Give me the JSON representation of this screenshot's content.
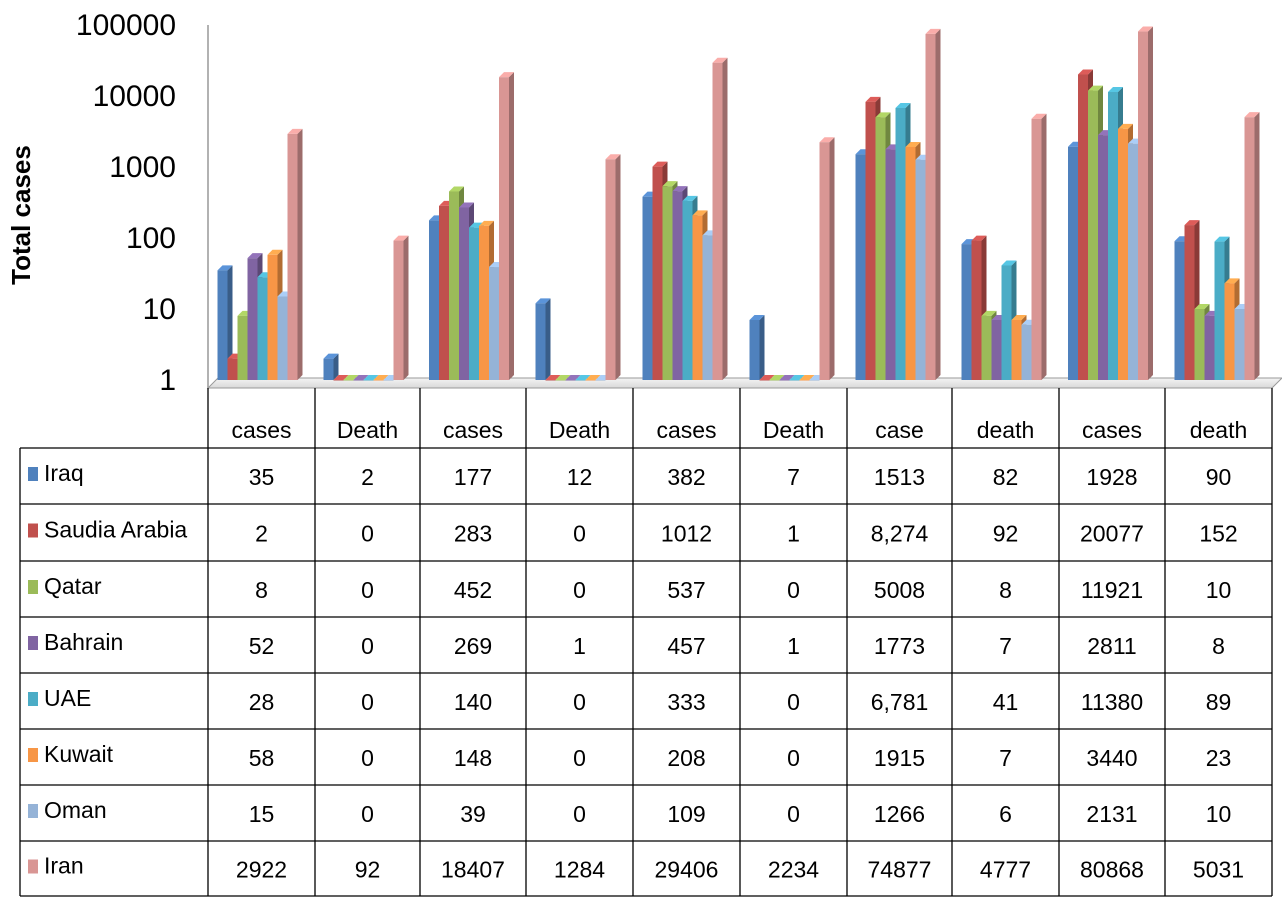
{
  "chart_data": {
    "type": "bar",
    "ylabel": "Total cases",
    "yscale": "log",
    "ylim": [
      1,
      100000
    ],
    "y_ticks": [
      "1",
      "10",
      "100",
      "1000",
      "10000",
      "100000"
    ],
    "categories": [
      "cases",
      "Death",
      "cases",
      "Death",
      "cases",
      "Death",
      "case",
      "death",
      "cases",
      "death"
    ],
    "legend_position": "data-table",
    "series": [
      {
        "name": "Iraq",
        "color": "#4F81BD",
        "values": [
          35,
          2,
          177,
          12,
          382,
          7,
          1513,
          82,
          1928,
          90
        ],
        "labels": [
          "35",
          "2",
          "177",
          "12",
          "382",
          "7",
          "1513",
          "82",
          "1928",
          "90"
        ]
      },
      {
        "name": "Saudia Arabia",
        "color": "#C0504D",
        "values": [
          2,
          0,
          283,
          0,
          1012,
          1,
          8274,
          92,
          20077,
          152
        ],
        "labels": [
          "2",
          "0",
          "283",
          "0",
          "1012",
          "1",
          "8,274",
          "92",
          "20077",
          "152"
        ]
      },
      {
        "name": "Qatar",
        "color": "#9BBB59",
        "values": [
          8,
          0,
          452,
          0,
          537,
          0,
          5008,
          8,
          11921,
          10
        ],
        "labels": [
          "8",
          "0",
          "452",
          "0",
          "537",
          "0",
          "5008",
          "8",
          "11921",
          "10"
        ]
      },
      {
        "name": "Bahrain",
        "color": "#8064A2",
        "values": [
          52,
          0,
          269,
          1,
          457,
          1,
          1773,
          7,
          2811,
          8
        ],
        "labels": [
          "52",
          "0",
          "269",
          "1",
          "457",
          "1",
          "1773",
          "7",
          "2811",
          "8"
        ]
      },
      {
        "name": "UAE",
        "color": "#4BACC6",
        "values": [
          28,
          0,
          140,
          0,
          333,
          0,
          6781,
          41,
          11380,
          89
        ],
        "labels": [
          "28",
          "0",
          "140",
          "0",
          "333",
          "0",
          "6,781",
          "41",
          "11380",
          "89"
        ]
      },
      {
        "name": "Kuwait",
        "color": "#F79646",
        "values": [
          58,
          0,
          148,
          0,
          208,
          0,
          1915,
          7,
          3440,
          23
        ],
        "labels": [
          "58",
          "0",
          "148",
          "0",
          "208",
          "0",
          "1915",
          "7",
          "3440",
          "23"
        ]
      },
      {
        "name": "Oman",
        "color": "#95B3D7",
        "values": [
          15,
          0,
          39,
          0,
          109,
          0,
          1266,
          6,
          2131,
          10
        ],
        "labels": [
          "15",
          "0",
          "39",
          "0",
          "109",
          "0",
          "1266",
          "6",
          "2131",
          "10"
        ]
      },
      {
        "name": "Iran",
        "color": "#D99694",
        "values": [
          2922,
          92,
          18407,
          1284,
          29406,
          2234,
          74877,
          4777,
          80868,
          5031
        ],
        "labels": [
          "2922",
          "92",
          "18407",
          "1284",
          "29406",
          "2234",
          "74877",
          "4777",
          "80868",
          "5031"
        ]
      }
    ]
  }
}
